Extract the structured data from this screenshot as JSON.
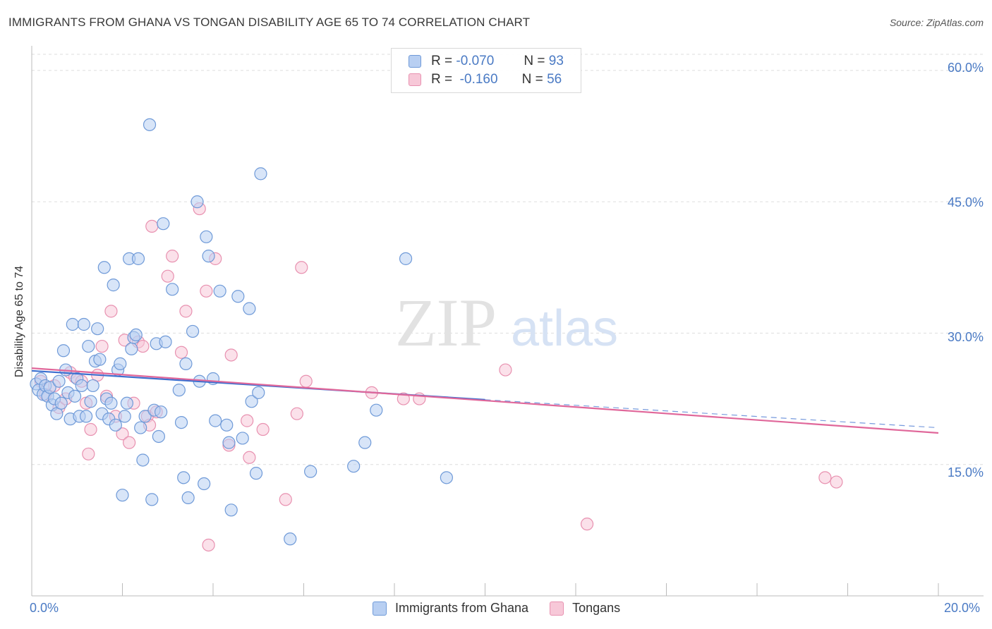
{
  "title": "IMMIGRANTS FROM GHANA VS TONGAN DISABILITY AGE 65 TO 74 CORRELATION CHART",
  "source": "Source: ZipAtlas.com",
  "watermark": {
    "zip": "ZIP",
    "atlas": "atlas"
  },
  "colors": {
    "blue_fill": "#b8cff2",
    "blue_stroke": "#6f9ad8",
    "blue_line": "#3d6fcf",
    "pink_fill": "#f7c8d8",
    "pink_stroke": "#e891b0",
    "pink_line": "#e0679a",
    "tick_text": "#4a7ac4",
    "grid": "#dddddd"
  },
  "legend": {
    "rows": [
      {
        "r_label": "R =",
        "r_value": "-0.070",
        "n_label": "N =",
        "n_value": "93"
      },
      {
        "r_label": "R =",
        "r_value": "-0.160",
        "n_label": "N =",
        "n_value": "56"
      }
    ],
    "bottom": [
      "Immigrants from Ghana",
      "Tongans"
    ]
  },
  "chart_data": {
    "type": "scatter",
    "title": "IMMIGRANTS FROM GHANA VS TONGAN DISABILITY AGE 65 TO 74 CORRELATION CHART",
    "xlabel": "",
    "ylabel": "Disability Age 65 to 74",
    "xlim": [
      0,
      20
    ],
    "ylim": [
      0,
      62
    ],
    "x_tick_labels": [
      "0.0%",
      "20.0%"
    ],
    "y_ticks": [
      15,
      30,
      45,
      60
    ],
    "y_tick_labels": [
      "15.0%",
      "30.0%",
      "45.0%",
      "60.0%"
    ],
    "grid": true,
    "legend_position": "top-center",
    "series": [
      {
        "name": "Immigrants from Ghana",
        "color": "#6f9ad8",
        "trend": {
          "x": [
            0,
            10
          ],
          "y": [
            25.7,
            22.4
          ],
          "dashed_extension": {
            "x": [
              10,
              20
            ],
            "y": [
              22.4,
              19.2
            ]
          }
        },
        "points": [
          [
            0.1,
            24.2
          ],
          [
            0.15,
            23.5
          ],
          [
            0.2,
            24.8
          ],
          [
            0.25,
            23.0
          ],
          [
            0.3,
            24.0
          ],
          [
            0.35,
            22.8
          ],
          [
            0.4,
            23.8
          ],
          [
            0.45,
            21.8
          ],
          [
            0.5,
            22.5
          ],
          [
            0.55,
            20.8
          ],
          [
            0.6,
            24.5
          ],
          [
            0.65,
            22.0
          ],
          [
            0.7,
            28.0
          ],
          [
            0.75,
            25.8
          ],
          [
            0.8,
            23.2
          ],
          [
            0.85,
            20.2
          ],
          [
            0.9,
            31.0
          ],
          [
            0.95,
            22.8
          ],
          [
            1.0,
            24.8
          ],
          [
            1.05,
            20.5
          ],
          [
            1.1,
            24.0
          ],
          [
            1.15,
            31.0
          ],
          [
            1.2,
            20.5
          ],
          [
            1.25,
            28.5
          ],
          [
            1.3,
            22.2
          ],
          [
            1.35,
            24.0
          ],
          [
            1.4,
            26.8
          ],
          [
            1.45,
            30.5
          ],
          [
            1.5,
            27.0
          ],
          [
            1.55,
            20.8
          ],
          [
            1.6,
            37.5
          ],
          [
            1.65,
            22.5
          ],
          [
            1.7,
            20.2
          ],
          [
            1.75,
            22.0
          ],
          [
            1.8,
            35.5
          ],
          [
            1.85,
            19.5
          ],
          [
            1.9,
            25.8
          ],
          [
            1.95,
            26.5
          ],
          [
            2.0,
            11.5
          ],
          [
            2.05,
            20.5
          ],
          [
            2.1,
            22.0
          ],
          [
            2.15,
            38.5
          ],
          [
            2.2,
            28.2
          ],
          [
            2.25,
            29.5
          ],
          [
            2.3,
            29.8
          ],
          [
            2.35,
            38.5
          ],
          [
            2.4,
            19.2
          ],
          [
            2.45,
            15.5
          ],
          [
            2.5,
            20.5
          ],
          [
            2.6,
            53.8
          ],
          [
            2.65,
            11.0
          ],
          [
            2.7,
            21.2
          ],
          [
            2.75,
            28.8
          ],
          [
            2.8,
            18.2
          ],
          [
            2.85,
            21.0
          ],
          [
            2.9,
            42.5
          ],
          [
            2.95,
            29.0
          ],
          [
            3.1,
            35.0
          ],
          [
            3.25,
            23.5
          ],
          [
            3.3,
            19.8
          ],
          [
            3.35,
            13.5
          ],
          [
            3.4,
            26.5
          ],
          [
            3.45,
            11.2
          ],
          [
            3.55,
            30.2
          ],
          [
            3.65,
            45.0
          ],
          [
            3.7,
            24.5
          ],
          [
            3.8,
            12.8
          ],
          [
            3.85,
            41.0
          ],
          [
            3.9,
            38.8
          ],
          [
            4.0,
            24.8
          ],
          [
            4.05,
            20.0
          ],
          [
            4.15,
            34.8
          ],
          [
            4.3,
            19.5
          ],
          [
            4.35,
            17.5
          ],
          [
            4.4,
            9.8
          ],
          [
            4.55,
            34.2
          ],
          [
            4.65,
            18.0
          ],
          [
            4.8,
            32.8
          ],
          [
            4.85,
            22.2
          ],
          [
            4.95,
            14.0
          ],
          [
            5.0,
            23.2
          ],
          [
            5.05,
            48.2
          ],
          [
            5.7,
            6.5
          ],
          [
            6.15,
            14.2
          ],
          [
            7.1,
            14.8
          ],
          [
            7.35,
            17.5
          ],
          [
            7.6,
            21.2
          ],
          [
            8.25,
            38.5
          ],
          [
            9.15,
            13.5
          ]
        ]
      },
      {
        "name": "Tongans",
        "color": "#e891b0",
        "trend": {
          "x": [
            0,
            20
          ],
          "y": [
            26.0,
            18.6
          ]
        },
        "points": [
          [
            0.2,
            24.5
          ],
          [
            0.3,
            23.0
          ],
          [
            0.5,
            24.0
          ],
          [
            0.6,
            21.5
          ],
          [
            0.75,
            22.5
          ],
          [
            0.85,
            25.5
          ],
          [
            0.95,
            25.0
          ],
          [
            1.1,
            24.5
          ],
          [
            1.2,
            22.0
          ],
          [
            1.25,
            16.2
          ],
          [
            1.3,
            19.0
          ],
          [
            1.45,
            25.2
          ],
          [
            1.55,
            28.5
          ],
          [
            1.65,
            22.8
          ],
          [
            1.75,
            32.5
          ],
          [
            1.85,
            20.5
          ],
          [
            2.0,
            18.5
          ],
          [
            2.05,
            29.2
          ],
          [
            2.15,
            17.5
          ],
          [
            2.25,
            22.0
          ],
          [
            2.35,
            29.0
          ],
          [
            2.45,
            28.5
          ],
          [
            2.55,
            20.5
          ],
          [
            2.6,
            19.5
          ],
          [
            2.65,
            42.2
          ],
          [
            2.75,
            21.0
          ],
          [
            3.0,
            36.5
          ],
          [
            3.1,
            38.8
          ],
          [
            3.3,
            27.8
          ],
          [
            3.4,
            32.5
          ],
          [
            3.7,
            44.2
          ],
          [
            3.85,
            34.8
          ],
          [
            3.9,
            5.8
          ],
          [
            4.05,
            38.5
          ],
          [
            4.35,
            17.2
          ],
          [
            4.4,
            27.5
          ],
          [
            4.75,
            20.0
          ],
          [
            4.8,
            15.8
          ],
          [
            5.1,
            19.0
          ],
          [
            5.6,
            11.0
          ],
          [
            5.85,
            20.8
          ],
          [
            5.95,
            37.5
          ],
          [
            6.05,
            24.5
          ],
          [
            7.5,
            23.2
          ],
          [
            8.2,
            22.5
          ],
          [
            8.55,
            22.5
          ],
          [
            10.45,
            25.8
          ],
          [
            12.25,
            8.2
          ],
          [
            17.5,
            13.5
          ],
          [
            17.75,
            13.0
          ]
        ]
      }
    ]
  }
}
